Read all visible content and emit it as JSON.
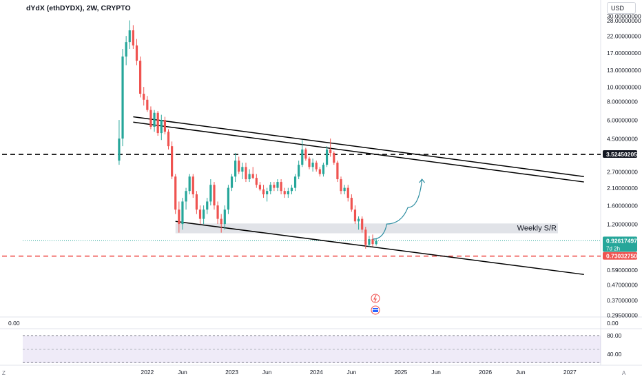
{
  "header": {
    "title": "dYdX (ethDYDX), 2W, CRYPTO",
    "currency": "USD"
  },
  "colors": {
    "up": "#26a69a",
    "down": "#ef5350",
    "price_line": "#26a69a",
    "support_line": "#ef5350",
    "resistance_line": "#000000",
    "zone": "#d1d4dc",
    "projection": "#2a8ca0",
    "osc_band": "#7e57c2"
  },
  "indicators": {
    "left_value": "0.00",
    "right_value": "0.00"
  },
  "bottom_bar": {
    "left_button": "Z",
    "right_button": "A"
  },
  "icons": [
    "lightning-icon",
    "flag-icon"
  ],
  "chart_data": {
    "type": "candlestick",
    "symbol": "dYdX (ethDYDX)",
    "interval": "2W",
    "y_scale": "log",
    "y_tick_labels": [
      "30.00000000",
      "28.00000000",
      "22.00000000",
      "17.00000000",
      "13.00000000",
      "10.00000000",
      "8.00000000",
      "6.00000000",
      "4.50000000",
      "2.70000000",
      "2.10000000",
      "1.60000000",
      "1.20000000",
      "0.59000000",
      "0.47000000",
      "0.37000000",
      "0.29500000"
    ],
    "x_tick_labels": [
      "2022",
      "Jun",
      "2023",
      "Jun",
      "2024",
      "Jun",
      "2025",
      "Jun",
      "2026",
      "Jun",
      "2027"
    ],
    "price_labels": [
      {
        "label": "3.52450205",
        "value": 3.5245,
        "style": "dark"
      },
      {
        "label": "0.92617497",
        "sub": "7d 2h",
        "value": 0.92617,
        "style": "green"
      },
      {
        "label": "0.73032750",
        "value": 0.7303,
        "style": "red"
      }
    ],
    "horizontal_levels": [
      {
        "value": 3.5245,
        "style": "dashed",
        "color": "black"
      },
      {
        "value": 0.7303,
        "style": "dashed",
        "color": "red"
      },
      {
        "value": 0.92617,
        "style": "dotted",
        "color": "green"
      }
    ],
    "zones": [
      {
        "label": "Weekly S/R",
        "from": 1.04,
        "to": 1.21
      }
    ],
    "trendlines": [
      {
        "from": [
          "2021-11",
          6.3
        ],
        "to": [
          "2027-03",
          2.5
        ]
      },
      {
        "from": [
          "2021-11",
          5.8
        ],
        "to": [
          "2027-03",
          2.3
        ]
      },
      {
        "from": [
          "2022-05",
          1.25
        ],
        "to": [
          "2027-03",
          0.55
        ]
      }
    ],
    "projection_path": [
      [
        "2024-09",
        0.95
      ],
      [
        "2024-11",
        1.2
      ],
      [
        "2025-02",
        1.55
      ],
      [
        "2025-04",
        2.4
      ]
    ],
    "ohlc": [
      {
        "t": "2021-09",
        "o": 3.2,
        "h": 6,
        "l": 3,
        "c": 4.5
      },
      {
        "t": "2021-09",
        "o": 4.5,
        "h": 18,
        "l": 4,
        "c": 16
      },
      {
        "t": "2021-10",
        "o": 16,
        "h": 22,
        "l": 14,
        "c": 20
      },
      {
        "t": "2021-10",
        "o": 20,
        "h": 28,
        "l": 18,
        "c": 24
      },
      {
        "t": "2021-11",
        "o": 24,
        "h": 26,
        "l": 18,
        "c": 19
      },
      {
        "t": "2021-11",
        "o": 19,
        "h": 21,
        "l": 14,
        "c": 15
      },
      {
        "t": "2021-12",
        "o": 15,
        "h": 16,
        "l": 8.5,
        "c": 9
      },
      {
        "t": "2021-12",
        "o": 9,
        "h": 10,
        "l": 7.5,
        "c": 8.2
      },
      {
        "t": "2022-01",
        "o": 8.2,
        "h": 8.7,
        "l": 6.8,
        "c": 7
      },
      {
        "t": "2022-01",
        "o": 7,
        "h": 7.4,
        "l": 5.2,
        "c": 5.4
      },
      {
        "t": "2022-02",
        "o": 5.4,
        "h": 7,
        "l": 5,
        "c": 6.7
      },
      {
        "t": "2022-02",
        "o": 6.7,
        "h": 6.9,
        "l": 4.7,
        "c": 4.9
      },
      {
        "t": "2022-03",
        "o": 4.9,
        "h": 6.5,
        "l": 4.4,
        "c": 6
      },
      {
        "t": "2022-03",
        "o": 6,
        "h": 6.3,
        "l": 4.8,
        "c": 5
      },
      {
        "t": "2022-04",
        "o": 5,
        "h": 5.2,
        "l": 3.8,
        "c": 4
      },
      {
        "t": "2022-04",
        "o": 4,
        "h": 4.3,
        "l": 2.4,
        "c": 2.5
      },
      {
        "t": "2022-05",
        "o": 2.5,
        "h": 2.6,
        "l": 1.4,
        "c": 1.5
      },
      {
        "t": "2022-05",
        "o": 1.5,
        "h": 1.7,
        "l": 1.05,
        "c": 1.2
      },
      {
        "t": "2022-06",
        "o": 1.2,
        "h": 1.8,
        "l": 1.1,
        "c": 1.7
      },
      {
        "t": "2022-06",
        "o": 1.7,
        "h": 2.1,
        "l": 1.5,
        "c": 2
      },
      {
        "t": "2022-07",
        "o": 2,
        "h": 2.6,
        "l": 1.9,
        "c": 2.5
      },
      {
        "t": "2022-07",
        "o": 2.5,
        "h": 2.6,
        "l": 1.8,
        "c": 1.9
      },
      {
        "t": "2022-08",
        "o": 1.9,
        "h": 2,
        "l": 1.4,
        "c": 1.5
      },
      {
        "t": "2022-08",
        "o": 1.5,
        "h": 1.6,
        "l": 1.2,
        "c": 1.3
      },
      {
        "t": "2022-09",
        "o": 1.3,
        "h": 1.6,
        "l": 1.2,
        "c": 1.5
      },
      {
        "t": "2022-09",
        "o": 1.5,
        "h": 1.8,
        "l": 1.4,
        "c": 1.7
      },
      {
        "t": "2022-10",
        "o": 1.7,
        "h": 2.4,
        "l": 1.6,
        "c": 2.2
      },
      {
        "t": "2022-10",
        "o": 2.2,
        "h": 2.3,
        "l": 1.5,
        "c": 1.6
      },
      {
        "t": "2022-11",
        "o": 1.6,
        "h": 1.7,
        "l": 1.2,
        "c": 1.3
      },
      {
        "t": "2022-11",
        "o": 1.3,
        "h": 1.4,
        "l": 1.05,
        "c": 1.2
      },
      {
        "t": "2022-12",
        "o": 1.2,
        "h": 1.6,
        "l": 1.1,
        "c": 1.5
      },
      {
        "t": "2022-12",
        "o": 1.5,
        "h": 2.2,
        "l": 1.4,
        "c": 2.1
      },
      {
        "t": "2023-01",
        "o": 2.1,
        "h": 2.6,
        "l": 2,
        "c": 2.5
      },
      {
        "t": "2023-01",
        "o": 2.5,
        "h": 3.6,
        "l": 2.3,
        "c": 3.2
      },
      {
        "t": "2023-02",
        "o": 3.2,
        "h": 3.4,
        "l": 2.6,
        "c": 2.7
      },
      {
        "t": "2023-02",
        "o": 2.7,
        "h": 3.1,
        "l": 2.4,
        "c": 2.9
      },
      {
        "t": "2023-03",
        "o": 2.9,
        "h": 3.1,
        "l": 2.3,
        "c": 2.4
      },
      {
        "t": "2023-03",
        "o": 2.4,
        "h": 2.8,
        "l": 2.3,
        "c": 2.6
      },
      {
        "t": "2023-04",
        "o": 2.6,
        "h": 2.9,
        "l": 2.4,
        "c": 2.45
      },
      {
        "t": "2023-04",
        "o": 2.45,
        "h": 2.6,
        "l": 2.1,
        "c": 2.2
      },
      {
        "t": "2023-05",
        "o": 2.2,
        "h": 2.3,
        "l": 2,
        "c": 2.05
      },
      {
        "t": "2023-05",
        "o": 2.05,
        "h": 2.2,
        "l": 1.8,
        "c": 1.9
      },
      {
        "t": "2023-06",
        "o": 1.9,
        "h": 2.1,
        "l": 1.7,
        "c": 2
      },
      {
        "t": "2023-06",
        "o": 2,
        "h": 2.3,
        "l": 1.9,
        "c": 2.2
      },
      {
        "t": "2023-07",
        "o": 2.2,
        "h": 2.3,
        "l": 2,
        "c": 2.1
      },
      {
        "t": "2023-07",
        "o": 2.1,
        "h": 2.4,
        "l": 2,
        "c": 2.3
      },
      {
        "t": "2023-08",
        "o": 2.3,
        "h": 2.4,
        "l": 1.9,
        "c": 2
      },
      {
        "t": "2023-08",
        "o": 2,
        "h": 2.1,
        "l": 1.8,
        "c": 1.9
      },
      {
        "t": "2023-09",
        "o": 1.9,
        "h": 2.1,
        "l": 1.8,
        "c": 2
      },
      {
        "t": "2023-09",
        "o": 2,
        "h": 2.2,
        "l": 1.9,
        "c": 2.1
      },
      {
        "t": "2023-10",
        "o": 2.1,
        "h": 2.6,
        "l": 2,
        "c": 2.5
      },
      {
        "t": "2023-10",
        "o": 2.5,
        "h": 3.2,
        "l": 2.4,
        "c": 3
      },
      {
        "t": "2023-11",
        "o": 3,
        "h": 4.4,
        "l": 2.9,
        "c": 3.8
      },
      {
        "t": "2023-11",
        "o": 3.8,
        "h": 3.9,
        "l": 3.2,
        "c": 3.3
      },
      {
        "t": "2023-12",
        "o": 3.3,
        "h": 3.4,
        "l": 2.8,
        "c": 2.9
      },
      {
        "t": "2023-12",
        "o": 2.9,
        "h": 3.3,
        "l": 2.7,
        "c": 3.1
      },
      {
        "t": "2024-01",
        "o": 3.1,
        "h": 3.2,
        "l": 2.7,
        "c": 2.8
      },
      {
        "t": "2024-01",
        "o": 2.8,
        "h": 2.9,
        "l": 2.5,
        "c": 2.6
      },
      {
        "t": "2024-02",
        "o": 2.6,
        "h": 3.1,
        "l": 2.5,
        "c": 3
      },
      {
        "t": "2024-02",
        "o": 3,
        "h": 4,
        "l": 2.9,
        "c": 3.8
      },
      {
        "t": "2024-03",
        "o": 3.8,
        "h": 4.5,
        "l": 3.4,
        "c": 3.6
      },
      {
        "t": "2024-03",
        "o": 3.6,
        "h": 3.7,
        "l": 3,
        "c": 3.1
      },
      {
        "t": "2024-04",
        "o": 3.1,
        "h": 3.2,
        "l": 2.3,
        "c": 2.4
      },
      {
        "t": "2024-04",
        "o": 2.4,
        "h": 2.5,
        "l": 1.9,
        "c": 2
      },
      {
        "t": "2024-05",
        "o": 2,
        "h": 2.2,
        "l": 1.9,
        "c": 2.1
      },
      {
        "t": "2024-05",
        "o": 2.1,
        "h": 2.2,
        "l": 1.7,
        "c": 1.8
      },
      {
        "t": "2024-06",
        "o": 1.8,
        "h": 1.9,
        "l": 1.45,
        "c": 1.5
      },
      {
        "t": "2024-06",
        "o": 1.5,
        "h": 1.6,
        "l": 1.2,
        "c": 1.25
      },
      {
        "t": "2024-07",
        "o": 1.25,
        "h": 1.35,
        "l": 1.1,
        "c": 1.3
      },
      {
        "t": "2024-07",
        "o": 1.3,
        "h": 1.35,
        "l": 1.05,
        "c": 1.1
      },
      {
        "t": "2024-08",
        "o": 1.1,
        "h": 1.15,
        "l": 0.82,
        "c": 0.87
      },
      {
        "t": "2024-08",
        "o": 0.87,
        "h": 1.0,
        "l": 0.84,
        "c": 0.95
      },
      {
        "t": "2024-09",
        "o": 0.95,
        "h": 1.02,
        "l": 0.85,
        "c": 0.88
      },
      {
        "t": "2024-09",
        "o": 0.88,
        "h": 0.96,
        "l": 0.86,
        "c": 0.926
      }
    ]
  }
}
